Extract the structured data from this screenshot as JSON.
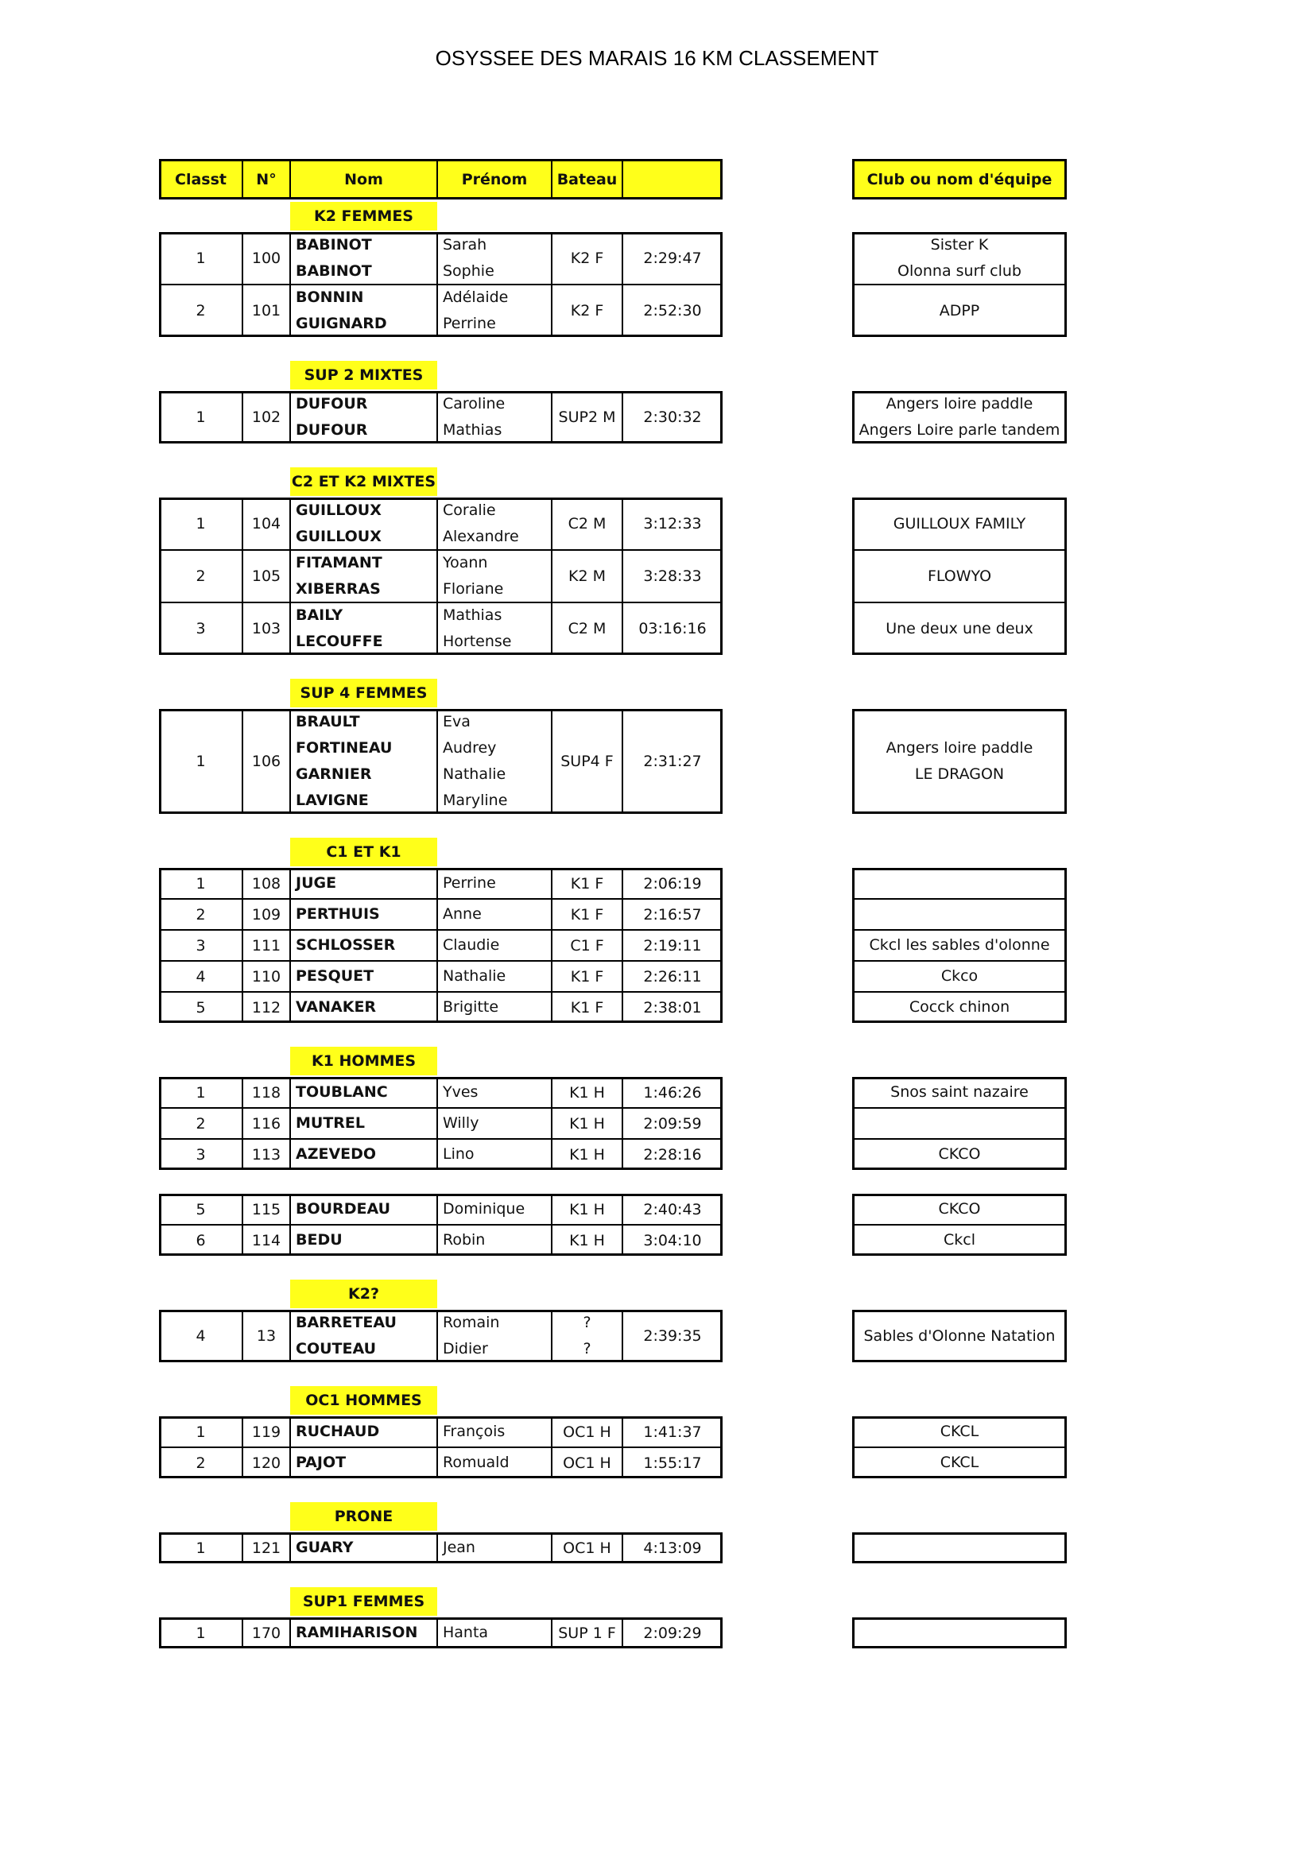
{
  "title": "OSYSSEE DES MARAIS 16 KM CLASSEMENT",
  "header": [
    "Classt",
    "N°",
    "Nom",
    "Prénom",
    "Bateau"
  ],
  "club_header": "Club ou nom d'équipe",
  "sections": [
    {
      "label": "K2 FEMMES",
      "entries": [
        {
          "rank": 1,
          "num": 100,
          "noms": [
            "BABINOT",
            "BABINOT"
          ],
          "prenoms": [
            "Sarah",
            "Sophie"
          ],
          "bateau": "K2 F",
          "temps": "2:29:47",
          "club": [
            "Sister K",
            "Olonna surf club"
          ]
        },
        {
          "rank": 2,
          "num": 101,
          "noms": [
            "BONNIN",
            "GUIGNARD"
          ],
          "prenoms": [
            "Adélaide",
            "Perrine"
          ],
          "bateau": "K2 F",
          "temps": "2:52:30",
          "club": [
            "ADPP"
          ]
        }
      ]
    },
    {
      "label": "SUP 2 MIXTES",
      "entries": [
        {
          "rank": 1,
          "num": 102,
          "noms": [
            "DUFOUR",
            "DUFOUR"
          ],
          "prenoms": [
            "Caroline",
            "Mathias"
          ],
          "bateau": "SUP2 M",
          "temps": "2:30:32",
          "club": [
            "Angers loire paddle",
            "Angers Loire parle tandem"
          ]
        }
      ]
    },
    {
      "label": "C2 ET K2 MIXTES",
      "entries": [
        {
          "rank": 1,
          "num": 104,
          "noms": [
            "GUILLOUX",
            "GUILLOUX"
          ],
          "prenoms": [
            "Coralie",
            "Alexandre"
          ],
          "bateau": "C2 M",
          "temps": "3:12:33",
          "club": [
            "GUILLOUX FAMILY"
          ]
        },
        {
          "rank": 2,
          "num": 105,
          "noms": [
            "FITAMANT",
            "XIBERRAS"
          ],
          "prenoms": [
            "Yoann",
            "Floriane"
          ],
          "bateau": "K2 M",
          "temps": "3:28:33",
          "club": [
            "FLOWYO"
          ]
        },
        {
          "rank": 3,
          "num": 103,
          "noms": [
            "BAILY",
            "LECOUFFE"
          ],
          "prenoms": [
            "Mathias",
            "Hortense"
          ],
          "bateau": "C2 M",
          "temps": "03:16:16",
          "club": [
            "Une deux une deux"
          ]
        }
      ]
    },
    {
      "label": "SUP 4 FEMMES",
      "entries": [
        {
          "rank": 1,
          "num": 106,
          "noms": [
            "BRAULT",
            "FORTINEAU",
            "GARNIER",
            "LAVIGNE"
          ],
          "prenoms": [
            "Eva",
            "Audrey",
            "Nathalie",
            "Maryline"
          ],
          "bateau": "SUP4 F",
          "temps": "2:31:27",
          "club": [
            "Angers loire paddle",
            "LE DRAGON"
          ]
        }
      ]
    },
    {
      "label": "C1 ET K1",
      "entries": [
        {
          "rank": 1,
          "num": 108,
          "noms": [
            "JUGE"
          ],
          "prenoms": [
            "Perrine"
          ],
          "bateau": "K1 F",
          "temps": "2:06:19",
          "club": []
        },
        {
          "rank": 2,
          "num": 109,
          "noms": [
            "PERTHUIS"
          ],
          "prenoms": [
            "Anne"
          ],
          "bateau": "K1 F",
          "temps": "2:16:57",
          "club": []
        },
        {
          "rank": 3,
          "num": 111,
          "noms": [
            "SCHLOSSER"
          ],
          "prenoms": [
            "Claudie"
          ],
          "bateau": "C1 F",
          "temps": "2:19:11",
          "club": [
            "Ckcl les sables d'olonne"
          ]
        },
        {
          "rank": 4,
          "num": 110,
          "noms": [
            "PESQUET"
          ],
          "prenoms": [
            "Nathalie"
          ],
          "bateau": "K1 F",
          "temps": "2:26:11",
          "club": [
            "Ckco"
          ]
        },
        {
          "rank": 5,
          "num": 112,
          "noms": [
            "VANAKER"
          ],
          "prenoms": [
            "Brigitte"
          ],
          "bateau": "K1 F",
          "temps": "2:38:01",
          "club": [
            "Cocck chinon"
          ]
        }
      ]
    },
    {
      "label": "K1 HOMMES",
      "entries": [
        {
          "rank": 1,
          "num": 118,
          "noms": [
            "TOUBLANC"
          ],
          "prenoms": [
            "Yves"
          ],
          "bateau": "K1 H",
          "temps": "1:46:26",
          "club": [
            "Snos saint nazaire"
          ]
        },
        {
          "rank": 2,
          "num": 116,
          "noms": [
            "MUTREL"
          ],
          "prenoms": [
            "Willy"
          ],
          "bateau": "K1 H",
          "temps": "2:09:59",
          "club": []
        },
        {
          "rank": 3,
          "num": 113,
          "noms": [
            "AZEVEDO"
          ],
          "prenoms": [
            "Lino"
          ],
          "bateau": "K1 H",
          "temps": "2:28:16",
          "club": [
            "CKCO"
          ]
        }
      ]
    },
    {
      "entries": [
        {
          "rank": 5,
          "num": 115,
          "noms": [
            "BOURDEAU"
          ],
          "prenoms": [
            "Dominique"
          ],
          "bateau": "K1 H",
          "temps": "2:40:43",
          "club": [
            "CKCO"
          ]
        },
        {
          "rank": 6,
          "num": 114,
          "noms": [
            "BEDU"
          ],
          "prenoms": [
            "Robin"
          ],
          "bateau": "K1 H",
          "temps": "3:04:10",
          "club": [
            "Ckcl"
          ]
        }
      ]
    },
    {
      "label": "K2?",
      "entries": [
        {
          "rank": 4,
          "num": 13,
          "noms": [
            "BARRETEAU",
            "COUTEAU"
          ],
          "prenoms": [
            "Romain",
            "Didier"
          ],
          "bateau": [
            "?",
            "?"
          ],
          "temps": "2:39:35",
          "club": [
            "Sables d'Olonne Natation"
          ]
        }
      ]
    },
    {
      "label": "OC1 HOMMES",
      "entries": [
        {
          "rank": 1,
          "num": 119,
          "noms": [
            "RUCHAUD"
          ],
          "prenoms": [
            "François"
          ],
          "bateau": "OC1 H",
          "temps": "1:41:37",
          "club": [
            "CKCL"
          ]
        },
        {
          "rank": 2,
          "num": 120,
          "noms": [
            "PAJOT"
          ],
          "prenoms": [
            "Romuald"
          ],
          "bateau": "OC1 H",
          "temps": "1:55:17",
          "club": [
            "CKCL"
          ]
        }
      ]
    },
    {
      "label": "PRONE",
      "entries": [
        {
          "rank": 1,
          "num": 121,
          "noms": [
            "GUARY"
          ],
          "prenoms": [
            "Jean"
          ],
          "bateau": "OC1 H",
          "temps": "4:13:09",
          "club": []
        }
      ]
    },
    {
      "label": "SUP1 FEMMES",
      "entries": [
        {
          "rank": 1,
          "num": 170,
          "noms": [
            "RAMIHARISON"
          ],
          "prenoms": [
            "Hanta"
          ],
          "bateau": "SUP 1 F",
          "temps": "2:09:29",
          "club": []
        }
      ]
    }
  ]
}
